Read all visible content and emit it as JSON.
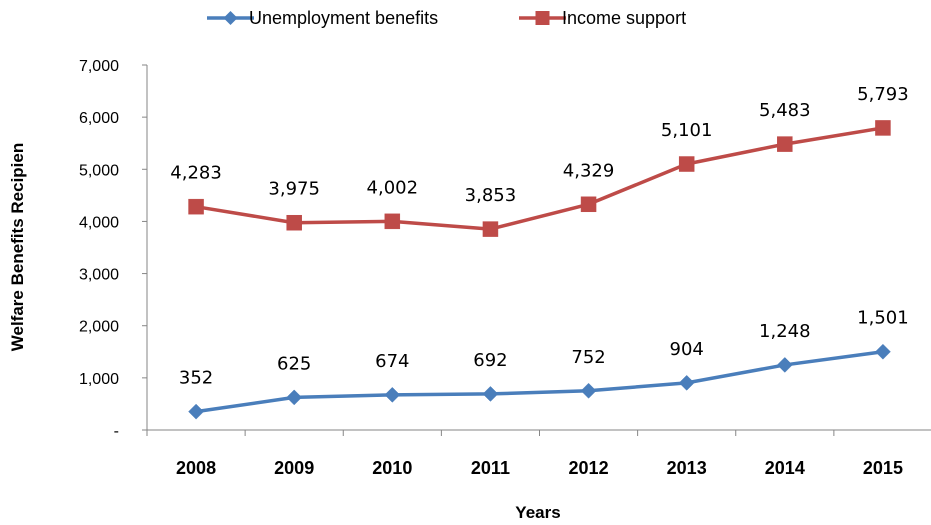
{
  "chart_data": {
    "type": "line",
    "categories": [
      "2008",
      "2009",
      "2010",
      "2011",
      "2012",
      "2013",
      "2014",
      "2015"
    ],
    "series": [
      {
        "name": "Unemployment benefits",
        "values": [
          352,
          625,
          674,
          692,
          752,
          904,
          1248,
          1501
        ],
        "labels": [
          "352",
          "625",
          "674",
          "692",
          "752",
          "904",
          "1,248",
          "1,501"
        ],
        "color": "#4a7ebb",
        "marker": "diamond"
      },
      {
        "name": "Income support",
        "values": [
          4283,
          3975,
          4002,
          3853,
          4329,
          5101,
          5483,
          5793
        ],
        "labels": [
          "4,283",
          "3,975",
          "4,002",
          "3,853",
          "4,329",
          "5,101",
          "5,483",
          "5,793"
        ],
        "color": "#be4b48",
        "marker": "square"
      }
    ],
    "xlabel": "Years",
    "ylabel": "Welfare Benefits Recipien",
    "ylim": [
      0,
      7000
    ],
    "yticks": [
      0,
      1000,
      2000,
      3000,
      4000,
      5000,
      6000,
      7000
    ],
    "ytick_labels": [
      "-",
      "1,000",
      "2,000",
      "3,000",
      "4,000",
      "5,000",
      "6,000",
      "7,000"
    ],
    "grid": false,
    "legend_position": "top-center"
  }
}
